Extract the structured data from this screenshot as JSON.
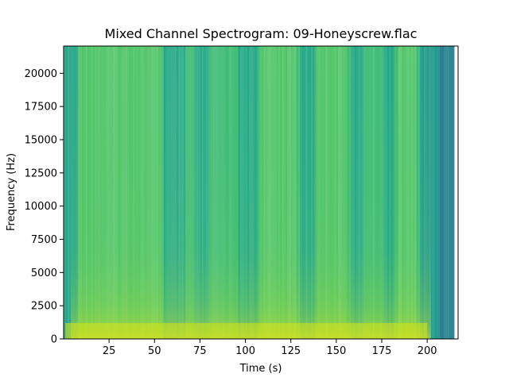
{
  "chart_data": {
    "type": "heatmap",
    "title": "Mixed Channel Spectrogram: 09-Honeyscrew.flac",
    "xlabel": "Time (s)",
    "ylabel": "Frequency (Hz)",
    "xlim": [
      0,
      217
    ],
    "ylim": [
      0,
      22050
    ],
    "x_ticks": [
      25,
      50,
      75,
      100,
      125,
      150,
      175,
      200
    ],
    "y_ticks": [
      0,
      2500,
      5000,
      7500,
      10000,
      12500,
      15000,
      17500,
      20000
    ],
    "colormap": "viridis",
    "content_start_s": 8,
    "content_end_s": 196,
    "low_energy_bands_s": [
      [
        55,
        67
      ],
      [
        72,
        80
      ],
      [
        96,
        107
      ],
      [
        130,
        138
      ],
      [
        158,
        165
      ],
      [
        176,
        182
      ]
    ],
    "bright_bands_s": [
      [
        8,
        54
      ],
      [
        108,
        128
      ],
      [
        140,
        156
      ],
      [
        184,
        194
      ]
    ],
    "tail_fade_s": [
      196,
      215
    ]
  }
}
